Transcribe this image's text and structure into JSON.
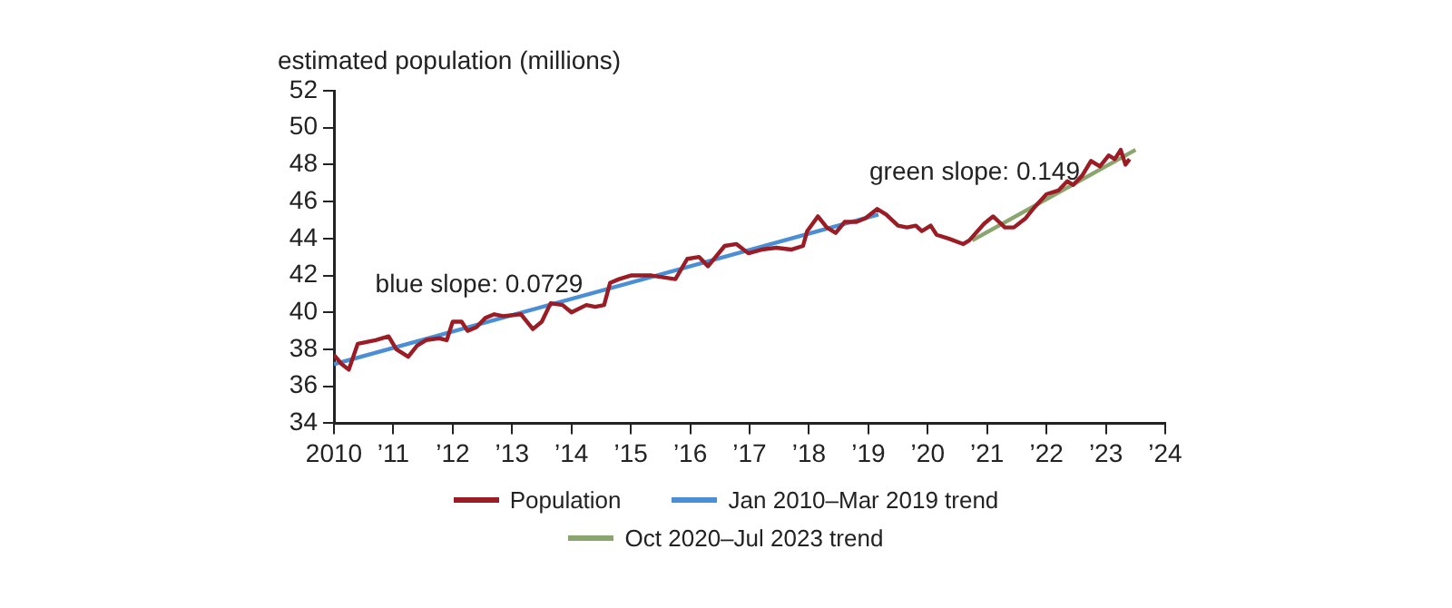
{
  "chart_data": {
    "type": "line",
    "ylabel": "estimated population (millions)",
    "xlim": [
      2010,
      2024
    ],
    "xticks": [
      {
        "value": 2010,
        "label": "2010"
      },
      {
        "value": 2011,
        "label": "’11"
      },
      {
        "value": 2012,
        "label": "’12"
      },
      {
        "value": 2013,
        "label": "’13"
      },
      {
        "value": 2014,
        "label": "’14"
      },
      {
        "value": 2015,
        "label": "’15"
      },
      {
        "value": 2016,
        "label": "’16"
      },
      {
        "value": 2017,
        "label": "’17"
      },
      {
        "value": 2018,
        "label": "’18"
      },
      {
        "value": 2019,
        "label": "’19"
      },
      {
        "value": 2020,
        "label": "’20"
      },
      {
        "value": 2021,
        "label": "’21"
      },
      {
        "value": 2022,
        "label": "’22"
      },
      {
        "value": 2023,
        "label": "’23"
      },
      {
        "value": 2024,
        "label": "’24"
      }
    ],
    "ylim": [
      34,
      52
    ],
    "yticks": [
      34,
      36,
      38,
      40,
      42,
      44,
      46,
      48,
      50,
      52
    ],
    "grid": false,
    "legend": "bottom",
    "marker": "none",
    "series": [
      {
        "name": "Population",
        "color": "#9b1c24",
        "x": [
          2010.0,
          2010.13,
          2010.25,
          2010.4,
          2010.55,
          2010.7,
          2010.92,
          2011.05,
          2011.25,
          2011.4,
          2011.55,
          2011.77,
          2011.9,
          2012.0,
          2012.15,
          2012.25,
          2012.4,
          2012.55,
          2012.7,
          2012.85,
          2013.15,
          2013.35,
          2013.5,
          2013.65,
          2013.85,
          2014.0,
          2014.25,
          2014.4,
          2014.55,
          2014.65,
          2014.8,
          2015.0,
          2015.2,
          2015.35,
          2015.75,
          2015.95,
          2016.15,
          2016.3,
          2016.58,
          2016.78,
          2016.98,
          2017.2,
          2017.45,
          2017.7,
          2017.9,
          2017.97,
          2018.15,
          2018.3,
          2018.45,
          2018.6,
          2018.8,
          2018.95,
          2019.15,
          2019.3,
          2019.5,
          2019.65,
          2019.8,
          2019.9,
          2020.05,
          2020.15,
          2020.35,
          2020.6,
          2020.7,
          2020.95,
          2021.1,
          2021.3,
          2021.45,
          2021.65,
          2021.8,
          2022.0,
          2022.2,
          2022.35,
          2022.45,
          2022.6,
          2022.75,
          2022.9,
          2023.05,
          2023.15,
          2023.25,
          2023.33,
          2023.4
        ],
        "values": [
          37.7,
          37.2,
          36.9,
          38.3,
          38.4,
          38.5,
          38.7,
          38.0,
          37.6,
          38.2,
          38.5,
          38.6,
          38.5,
          39.5,
          39.5,
          39.0,
          39.2,
          39.7,
          39.9,
          39.8,
          39.9,
          39.1,
          39.5,
          40.5,
          40.4,
          40.0,
          40.4,
          40.3,
          40.4,
          41.6,
          41.8,
          42.0,
          42.0,
          42.0,
          41.8,
          42.9,
          43.0,
          42.5,
          43.6,
          43.7,
          43.2,
          43.4,
          43.5,
          43.4,
          43.6,
          44.4,
          45.2,
          44.6,
          44.3,
          44.9,
          44.9,
          45.1,
          45.6,
          45.3,
          44.7,
          44.6,
          44.7,
          44.4,
          44.7,
          44.2,
          44.0,
          43.7,
          43.9,
          44.8,
          45.2,
          44.6,
          44.6,
          45.1,
          45.7,
          46.4,
          46.6,
          47.1,
          46.9,
          47.4,
          48.2,
          47.9,
          48.5,
          48.3,
          48.8,
          48.0,
          48.3
        ]
      },
      {
        "name": "Jan 2010–Mar 2019 trend",
        "color": "#4a8fd6",
        "x": [
          2010.0,
          2019.17
        ],
        "values": [
          37.2,
          45.3
        ]
      },
      {
        "name": "Oct 2020–Jul 2023 trend",
        "color": "#8aa66e",
        "x": [
          2020.75,
          2023.5
        ],
        "values": [
          43.9,
          48.8
        ]
      }
    ],
    "annotations": [
      "blue slope: 0.0729",
      "green slope: 0.149"
    ]
  }
}
